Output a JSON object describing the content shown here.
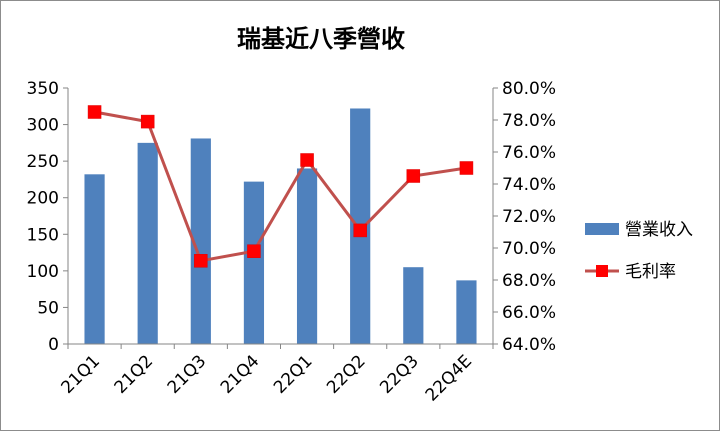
{
  "chart_data": {
    "type": "bar+line",
    "title": "瑞基近八季營收",
    "categories": [
      "21Q1",
      "21Q2",
      "21Q3",
      "21Q4",
      "22Q1",
      "22Q2",
      "22Q3",
      "22Q4E"
    ],
    "series": [
      {
        "name": "營業收入",
        "type": "bar",
        "axis": "left",
        "values": [
          232,
          275,
          281,
          222,
          240,
          322,
          105,
          87
        ],
        "color": "#4f81bd"
      },
      {
        "name": "毛利率",
        "type": "line",
        "axis": "right",
        "values": [
          78.5,
          77.9,
          69.2,
          69.8,
          75.5,
          71.1,
          74.5,
          75.0
        ],
        "color": "#c0504d",
        "marker_color": "#ff0000"
      }
    ],
    "y_left": {
      "min": 0,
      "max": 350,
      "step": 50,
      "ticks": [
        "0",
        "50",
        "100",
        "150",
        "200",
        "250",
        "300",
        "350"
      ]
    },
    "y_right": {
      "min": 64,
      "max": 80,
      "step": 2,
      "ticks": [
        "64.0%",
        "66.0%",
        "68.0%",
        "70.0%",
        "72.0%",
        "74.0%",
        "76.0%",
        "78.0%",
        "80.0%"
      ]
    },
    "grid": false,
    "legend": "right"
  }
}
